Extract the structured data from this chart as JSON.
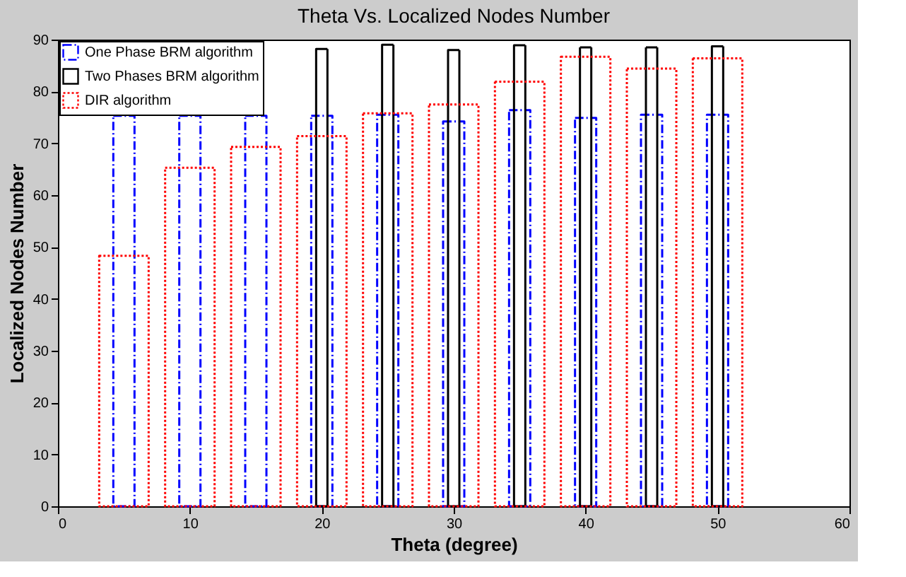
{
  "chart_data": {
    "type": "bar",
    "title": "Theta Vs. Localized Nodes Number",
    "xlabel": "Theta (degree)",
    "ylabel": "Localized Nodes Number",
    "x": [
      5,
      10,
      15,
      20,
      25,
      30,
      35,
      40,
      45,
      50
    ],
    "xlim": [
      0,
      60
    ],
    "xticks": [
      0,
      10,
      20,
      30,
      40,
      50,
      60
    ],
    "ylim": [
      0,
      90
    ],
    "yticks": [
      0,
      10,
      20,
      30,
      40,
      50,
      60,
      70,
      80,
      90
    ],
    "series": [
      {
        "name": "One Phase BRM algorithm",
        "color": "#0000ff",
        "line_style": "dashed",
        "values": [
          75.3,
          75.3,
          75.3,
          75.3,
          75.5,
          74.2,
          76.4,
          74.9,
          75.5,
          75.5
        ]
      },
      {
        "name": "Two Phases BRM algorithm",
        "color": "#000000",
        "line_style": "solid",
        "values": [
          null,
          null,
          null,
          88.2,
          89,
          88,
          88.9,
          88.5,
          88.5,
          88.7
        ]
      },
      {
        "name": "DIR algorithm",
        "color": "#ff0000",
        "line_style": "dotted",
        "values": [
          48.3,
          65.3,
          69.3,
          71.4,
          75.8,
          77.5,
          81.9,
          86.7,
          84.4,
          86.4
        ]
      }
    ],
    "legend": "top left",
    "grid": false
  }
}
